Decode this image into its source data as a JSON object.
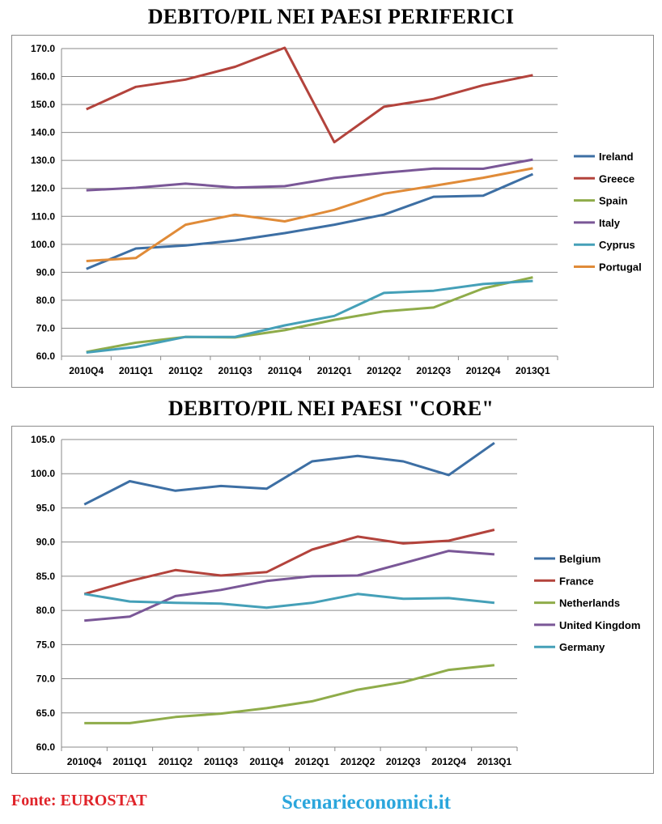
{
  "footer": {
    "source": "Fonte: EUROSTAT",
    "site": "Scenarieconomici.it"
  },
  "chart_data": [
    {
      "type": "line",
      "title": "DEBITO/PIL NEI PAESI PERIFERICI",
      "categories": [
        "2010Q4",
        "2011Q1",
        "2011Q2",
        "2011Q3",
        "2011Q4",
        "2012Q1",
        "2012Q2",
        "2012Q3",
        "2012Q4",
        "2013Q1"
      ],
      "ylim": [
        60,
        170
      ],
      "yticks": [
        60,
        70,
        80,
        90,
        100,
        110,
        120,
        130,
        140,
        150,
        160,
        170
      ],
      "ytick_labels": [
        "60.0",
        "70.0",
        "80.0",
        "90.0",
        "100.0",
        "110.0",
        "120.0",
        "130.0",
        "140.0",
        "150.0",
        "160.0",
        "170.0"
      ],
      "grid": true,
      "legend": "right",
      "series": [
        {
          "name": "Ireland",
          "color": "#3d6fa4",
          "values": [
            91.2,
            98.5,
            99.6,
            101.4,
            104.0,
            107.0,
            110.6,
            117.0,
            117.4,
            125.1
          ]
        },
        {
          "name": "Greece",
          "color": "#b3433c",
          "values": [
            148.3,
            156.3,
            158.9,
            163.5,
            170.3,
            136.5,
            149.2,
            152.0,
            156.9,
            160.5
          ]
        },
        {
          "name": "Spain",
          "color": "#8fac4a",
          "values": [
            61.5,
            64.8,
            66.9,
            66.7,
            69.3,
            73.0,
            76.0,
            77.4,
            84.2,
            88.2
          ]
        },
        {
          "name": "Italy",
          "color": "#7a5797",
          "values": [
            119.3,
            120.2,
            121.7,
            120.3,
            120.8,
            123.7,
            125.6,
            127.1,
            127.0,
            130.3
          ]
        },
        {
          "name": "Cyprus",
          "color": "#45a0b8",
          "values": [
            61.3,
            63.3,
            66.9,
            66.9,
            71.0,
            74.4,
            82.6,
            83.4,
            85.8,
            86.9
          ]
        },
        {
          "name": "Portugal",
          "color": "#e08b38",
          "values": [
            94.0,
            95.1,
            107.0,
            110.6,
            108.2,
            112.3,
            118.1,
            120.9,
            123.8,
            127.2
          ]
        }
      ]
    },
    {
      "type": "line",
      "title": "DEBITO/PIL NEI PAESI \"CORE\"",
      "categories": [
        "2010Q4",
        "2011Q1",
        "2011Q2",
        "2011Q3",
        "2011Q4",
        "2012Q1",
        "2012Q2",
        "2012Q3",
        "2012Q4",
        "2013Q1"
      ],
      "ylim": [
        60,
        105
      ],
      "yticks": [
        60,
        65,
        70,
        75,
        80,
        85,
        90,
        95,
        100,
        105
      ],
      "ytick_labels": [
        "60.0",
        "65.0",
        "70.0",
        "75.0",
        "80.0",
        "85.0",
        "90.0",
        "95.0",
        "100.0",
        "105.0"
      ],
      "grid": true,
      "legend": "right",
      "series": [
        {
          "name": "Belgium",
          "color": "#3d6fa4",
          "values": [
            95.5,
            98.9,
            97.5,
            98.2,
            97.8,
            101.8,
            102.6,
            101.8,
            99.8,
            104.5
          ]
        },
        {
          "name": "France",
          "color": "#b3433c",
          "values": [
            82.4,
            84.3,
            85.9,
            85.1,
            85.6,
            88.9,
            90.8,
            89.8,
            90.2,
            91.8
          ]
        },
        {
          "name": "Netherlands",
          "color": "#8fac4a",
          "values": [
            63.5,
            63.5,
            64.4,
            64.9,
            65.7,
            66.7,
            68.4,
            69.5,
            71.3,
            72.0
          ]
        },
        {
          "name": "United Kingdom",
          "color": "#7a5797",
          "values": [
            78.5,
            79.1,
            82.1,
            83.0,
            84.3,
            85.0,
            85.1,
            86.9,
            88.7,
            88.2
          ]
        },
        {
          "name": "Germany",
          "color": "#45a0b8",
          "values": [
            82.4,
            81.3,
            81.1,
            81.0,
            80.4,
            81.1,
            82.4,
            81.7,
            81.8,
            81.1
          ]
        }
      ]
    }
  ]
}
